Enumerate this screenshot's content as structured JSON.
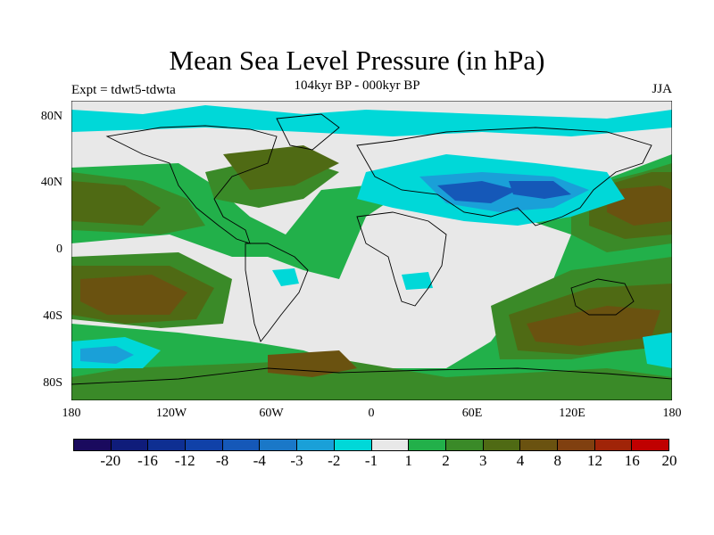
{
  "title": "Mean Sea Level Pressure (in hPa)",
  "experiment": "Expt = tdwt5-tdwta",
  "period": "104kyr BP - 000kyr BP",
  "season": "JJA",
  "lat_labels": [
    "80N",
    "40N",
    "0",
    "40S",
    "80S"
  ],
  "lon_labels": [
    "180",
    "120W",
    "60W",
    "0",
    "60E",
    "120E",
    "180"
  ],
  "colorbar": {
    "labels": [
      "-20",
      "-16",
      "-12",
      "-8",
      "-4",
      "-3",
      "-2",
      "-1",
      "1",
      "2",
      "3",
      "4",
      "8",
      "12",
      "16",
      "20"
    ],
    "colors": [
      "#1a0a5e",
      "#0f1c7a",
      "#0e2f92",
      "#1041a8",
      "#1558b8",
      "#1a78c8",
      "#1aa0d8",
      "#00d8d8",
      "#e8e8e8",
      "#22b04a",
      "#3a8a28",
      "#4f6a14",
      "#6a5210",
      "#804010",
      "#a02408",
      "#c00000"
    ]
  },
  "chart_data": {
    "type": "heatmap",
    "title": "Mean Sea Level Pressure (in hPa)",
    "variable": "Mean sea level pressure difference",
    "units": "hPa",
    "projection": "cylindrical equidistant (global)",
    "x_axis": {
      "range": [
        -180,
        180
      ],
      "ticks": [
        "180",
        "120W",
        "60W",
        "0",
        "60E",
        "120E",
        "180"
      ]
    },
    "y_axis": {
      "range": [
        -90,
        90
      ],
      "ticks": [
        "80N",
        "40N",
        "0",
        "40S",
        "80S"
      ]
    },
    "contour_levels": [
      -20,
      -16,
      -12,
      -8,
      -4,
      -3,
      -2,
      -1,
      1,
      2,
      3,
      4,
      8,
      12,
      16,
      20
    ]
  }
}
